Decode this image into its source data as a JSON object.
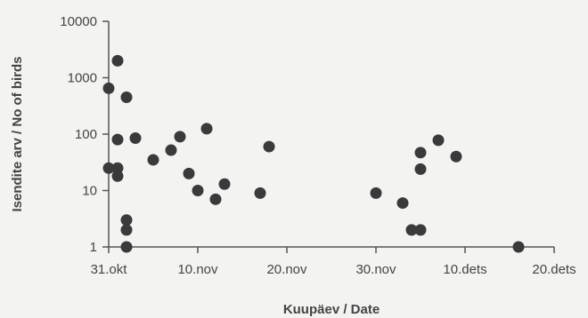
{
  "chart_data": {
    "type": "scatter",
    "title": "",
    "xlabel": "Kuupäev / Date",
    "ylabel": "Isendite arv / No of birds",
    "y_scale": "log",
    "ylim": [
      1,
      10000
    ],
    "xlim": [
      "2000-10-31",
      "2000-12-20"
    ],
    "grid": false,
    "legend": "none",
    "marker_color": "#3a3a3a",
    "x_ticks": [
      {
        "label": "31.okt",
        "date": "2000-10-31"
      },
      {
        "label": "10.nov",
        "date": "2000-11-10"
      },
      {
        "label": "20.nov",
        "date": "2000-11-20"
      },
      {
        "label": "30.nov",
        "date": "2000-11-30"
      },
      {
        "label": "10.dets",
        "date": "2000-12-10"
      },
      {
        "label": "20.dets",
        "date": "2000-12-20"
      }
    ],
    "y_ticks": [
      {
        "label": "1",
        "value": 1
      },
      {
        "label": "10",
        "value": 10
      },
      {
        "label": "100",
        "value": 100
      },
      {
        "label": "1000",
        "value": 1000
      },
      {
        "label": "10000",
        "value": 10000
      }
    ],
    "points": [
      {
        "x": "2000-10-31",
        "y": 650
      },
      {
        "x": "2000-10-31",
        "y": 25
      },
      {
        "x": "2000-11-01",
        "y": 2000
      },
      {
        "x": "2000-11-01",
        "y": 80
      },
      {
        "x": "2000-11-01",
        "y": 25
      },
      {
        "x": "2000-11-01",
        "y": 18
      },
      {
        "x": "2000-11-02",
        "y": 450
      },
      {
        "x": "2000-11-02",
        "y": 3
      },
      {
        "x": "2000-11-02",
        "y": 2
      },
      {
        "x": "2000-11-02",
        "y": 1
      },
      {
        "x": "2000-11-03",
        "y": 85
      },
      {
        "x": "2000-11-05",
        "y": 35
      },
      {
        "x": "2000-11-07",
        "y": 52
      },
      {
        "x": "2000-11-08",
        "y": 90
      },
      {
        "x": "2000-11-09",
        "y": 20
      },
      {
        "x": "2000-11-10",
        "y": 10
      },
      {
        "x": "2000-11-11",
        "y": 125
      },
      {
        "x": "2000-11-12",
        "y": 7
      },
      {
        "x": "2000-11-13",
        "y": 13
      },
      {
        "x": "2000-11-17",
        "y": 9
      },
      {
        "x": "2000-11-18",
        "y": 60
      },
      {
        "x": "2000-11-30",
        "y": 9
      },
      {
        "x": "2000-12-03",
        "y": 6
      },
      {
        "x": "2000-12-04",
        "y": 2
      },
      {
        "x": "2000-12-05",
        "y": 2
      },
      {
        "x": "2000-12-05",
        "y": 47
      },
      {
        "x": "2000-12-05",
        "y": 24
      },
      {
        "x": "2000-12-07",
        "y": 78
      },
      {
        "x": "2000-12-09",
        "y": 40
      },
      {
        "x": "2000-12-16",
        "y": 1
      }
    ]
  }
}
